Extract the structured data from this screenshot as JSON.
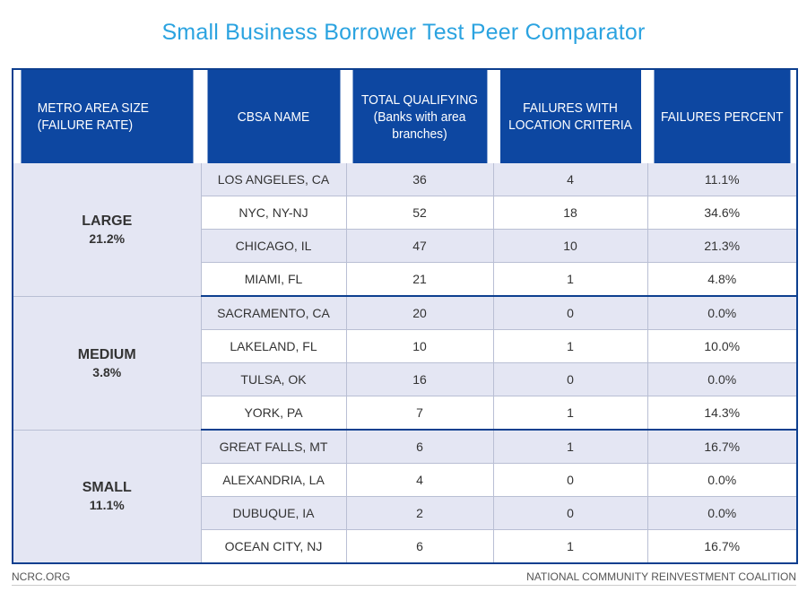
{
  "chart_data": {
    "type": "table",
    "title": "Small Business Borrower Test Peer Comparator",
    "columns": [
      [
        "METRO AREA SIZE",
        "(FAILURE RATE)"
      ],
      [
        "CBSA NAME"
      ],
      [
        "TOTAL QUALIFYING",
        "(Banks with area",
        "branches)"
      ],
      [
        "FAILURES WITH",
        "LOCATION CRITERIA"
      ],
      [
        "FAILURES PERCENT"
      ]
    ],
    "groups": [
      {
        "name": "LARGE",
        "rate": "21.2%",
        "rows": [
          {
            "cbsa": "LOS ANGELES, CA",
            "total": "36",
            "failures": "4",
            "percent": "11.1%"
          },
          {
            "cbsa": "NYC, NY-NJ",
            "total": "52",
            "failures": "18",
            "percent": "34.6%"
          },
          {
            "cbsa": "CHICAGO, IL",
            "total": "47",
            "failures": "10",
            "percent": "21.3%"
          },
          {
            "cbsa": "MIAMI, FL",
            "total": "21",
            "failures": "1",
            "percent": "4.8%"
          }
        ]
      },
      {
        "name": "MEDIUM",
        "rate": "3.8%",
        "rows": [
          {
            "cbsa": "SACRAMENTO, CA",
            "total": "20",
            "failures": "0",
            "percent": "0.0%"
          },
          {
            "cbsa": "LAKELAND, FL",
            "total": "10",
            "failures": "1",
            "percent": "10.0%"
          },
          {
            "cbsa": "TULSA, OK",
            "total": "16",
            "failures": "0",
            "percent": "0.0%"
          },
          {
            "cbsa": "YORK, PA",
            "total": "7",
            "failures": "1",
            "percent": "14.3%"
          }
        ]
      },
      {
        "name": "SMALL",
        "rate": "11.1%",
        "rows": [
          {
            "cbsa": "GREAT FALLS, MT",
            "total": "6",
            "failures": "1",
            "percent": "16.7%"
          },
          {
            "cbsa": "ALEXANDRIA, LA",
            "total": "4",
            "failures": "0",
            "percent": "0.0%"
          },
          {
            "cbsa": "DUBUQUE, IA",
            "total": "2",
            "failures": "0",
            "percent": "0.0%"
          },
          {
            "cbsa": "OCEAN CITY, NJ",
            "total": "6",
            "failures": "1",
            "percent": "16.7%"
          }
        ]
      }
    ]
  },
  "footer": {
    "left": "NCRC.ORG",
    "right": "NATIONAL COMMUNITY REINVESTMENT COALITION"
  },
  "colors": {
    "title": "#2ba3e0",
    "header_bg": "#0d47a1",
    "row_shade": "#e4e6f3"
  }
}
